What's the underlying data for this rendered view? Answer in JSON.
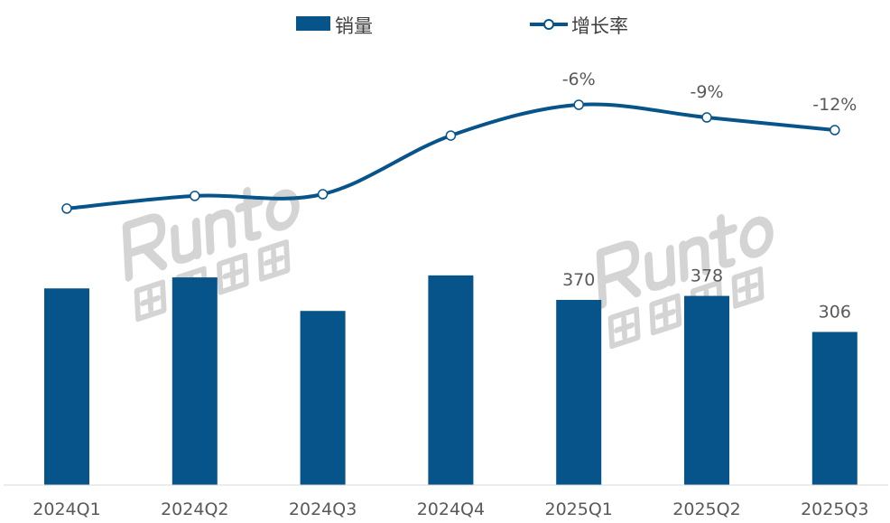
{
  "chart_data": {
    "type": "bar+line",
    "categories": [
      "2024Q1",
      "2024Q2",
      "2024Q3",
      "2024Q4",
      "2025Q1",
      "2025Q2",
      "2025Q3"
    ],
    "series": [
      {
        "name": "销量",
        "type": "bar",
        "values": [
          393,
          415,
          348,
          419,
          370,
          378,
          306
        ],
        "labels": [
          null,
          null,
          null,
          null,
          "370",
          "378",
          "306"
        ]
      },
      {
        "name": "增长率",
        "type": "line",
        "values": [
          -30.6,
          -27.6,
          -27.2,
          -13.3,
          -6,
          -9,
          -12
        ],
        "labels": [
          null,
          null,
          null,
          null,
          "-6%",
          "-9%",
          "-12%"
        ]
      }
    ],
    "legend": "top",
    "grid": false,
    "colors": {
      "bar": "#06548A",
      "line": "#06548A",
      "axis": "#d9d9d9"
    },
    "watermark": [
      "Runto",
      "洛图科技"
    ]
  }
}
